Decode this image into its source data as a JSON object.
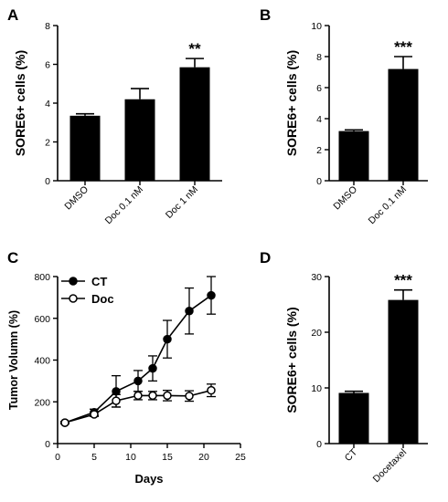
{
  "panels": {
    "A": {
      "letter": "A"
    },
    "B": {
      "letter": "B"
    },
    "C": {
      "letter": "C"
    },
    "D": {
      "letter": "D"
    }
  },
  "chart_data": [
    {
      "id": "A",
      "type": "bar",
      "categories": [
        "DMSO",
        "Doc 0.1 nM",
        "Doc 1 nM"
      ],
      "values": [
        3.35,
        4.2,
        5.85
      ],
      "errors": [
        0.1,
        0.55,
        0.45
      ],
      "significance": [
        "",
        "",
        "**"
      ],
      "ylabel": "SORE6+ cells (%)",
      "ylim": [
        0,
        8
      ],
      "yticks": [
        0,
        2,
        4,
        6,
        8
      ],
      "bar_color": "#000000",
      "grid": false
    },
    {
      "id": "B",
      "type": "bar",
      "categories": [
        "DMSO",
        "Doc 0.1 nM"
      ],
      "values": [
        3.2,
        7.2
      ],
      "errors": [
        0.08,
        0.8
      ],
      "significance": [
        "",
        "***"
      ],
      "ylabel": "SORE6+ cells (%)",
      "ylim": [
        0,
        10
      ],
      "yticks": [
        0,
        2,
        4,
        6,
        8,
        10
      ],
      "bar_color": "#000000",
      "grid": false
    },
    {
      "id": "C",
      "type": "line",
      "xlabel": "Days",
      "ylabel": "Tumor Volumn (%)",
      "xlim": [
        0,
        25
      ],
      "ylim": [
        0,
        800
      ],
      "xticks": [
        0,
        5,
        10,
        15,
        20,
        25
      ],
      "yticks": [
        0,
        200,
        400,
        600,
        800
      ],
      "legend_position": "top-left",
      "series": [
        {
          "name": "CT",
          "marker": "filled-circle",
          "x": [
            1,
            5,
            8,
            11,
            13,
            15,
            18,
            21
          ],
          "y": [
            100,
            150,
            250,
            300,
            360,
            500,
            635,
            710
          ],
          "errors": [
            5,
            15,
            75,
            50,
            60,
            90,
            110,
            90
          ]
        },
        {
          "name": "Doc",
          "marker": "open-circle",
          "x": [
            1,
            5,
            8,
            11,
            13,
            15,
            18,
            21
          ],
          "y": [
            100,
            140,
            205,
            230,
            230,
            230,
            228,
            255
          ],
          "errors": [
            5,
            10,
            30,
            20,
            20,
            25,
            25,
            30
          ]
        }
      ],
      "grid": false
    },
    {
      "id": "D",
      "type": "bar",
      "categories": [
        "CT",
        "Docetaxel"
      ],
      "values": [
        9.1,
        25.8
      ],
      "errors": [
        0.3,
        1.8
      ],
      "significance": [
        "",
        "***"
      ],
      "ylabel": "SORE6+ cells (%)",
      "ylim": [
        0,
        30
      ],
      "yticks": [
        0,
        10,
        20,
        30
      ],
      "bar_color": "#000000",
      "grid": false
    }
  ]
}
